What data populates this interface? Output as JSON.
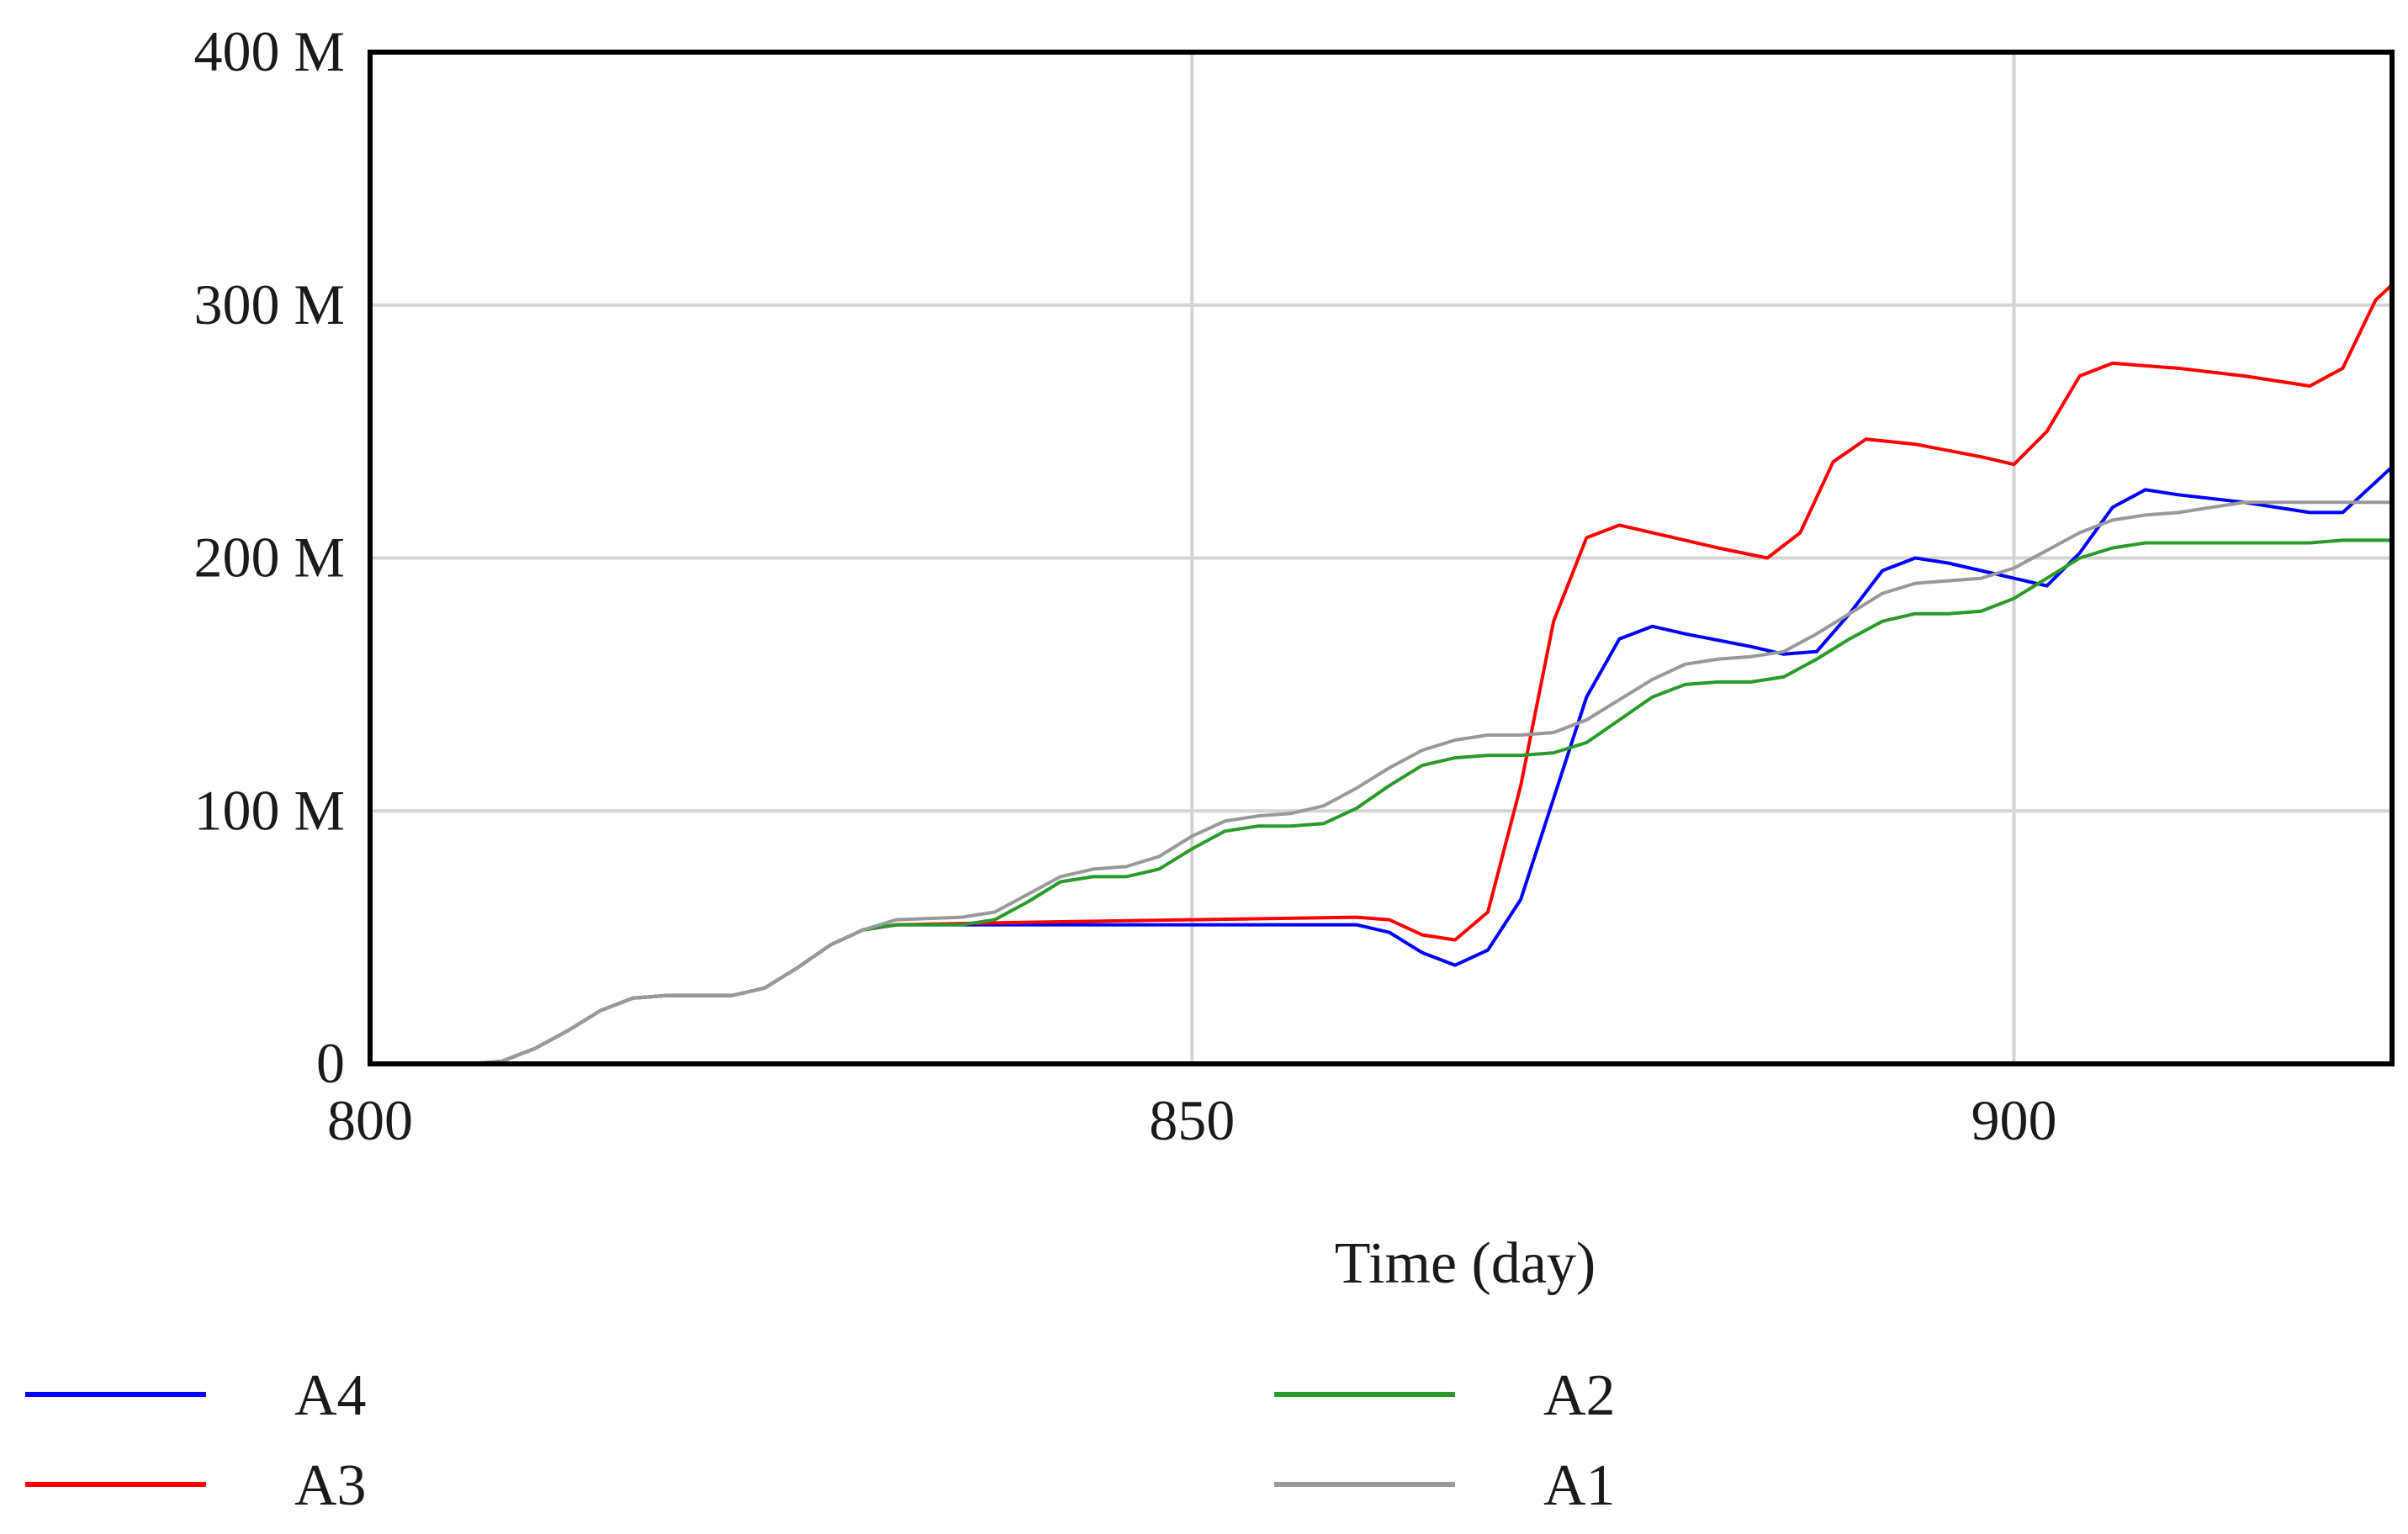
{
  "chart_data": {
    "type": "line",
    "title": "",
    "xlabel": "Time (day)",
    "ylabel": "",
    "xlim": [
      800,
      923
    ],
    "ylim": [
      0,
      400
    ],
    "x_ticks": [
      800,
      850,
      900
    ],
    "x_tick_labels": [
      "800",
      "850",
      "900"
    ],
    "y_ticks": [
      0,
      100,
      200,
      300,
      400
    ],
    "y_tick_labels": [
      "0",
      "100 M",
      "200 M",
      "300 M",
      "400 M"
    ],
    "y_unit": "M",
    "grid": true,
    "legend_position": "bottom",
    "series": [
      {
        "name": "A4",
        "color": "#0000ff",
        "points": [
          [
            800,
            0
          ],
          [
            806,
            0
          ],
          [
            808,
            1
          ],
          [
            810,
            6
          ],
          [
            812,
            13
          ],
          [
            814,
            21
          ],
          [
            816,
            26
          ],
          [
            818,
            27
          ],
          [
            820,
            27
          ],
          [
            822,
            27
          ],
          [
            824,
            30
          ],
          [
            826,
            38
          ],
          [
            828,
            47
          ],
          [
            830,
            53
          ],
          [
            832,
            55
          ],
          [
            840,
            55
          ],
          [
            850,
            55
          ],
          [
            860,
            55
          ],
          [
            862,
            52
          ],
          [
            864,
            44
          ],
          [
            866,
            39
          ],
          [
            868,
            45
          ],
          [
            870,
            65
          ],
          [
            872,
            105
          ],
          [
            874,
            145
          ],
          [
            876,
            168
          ],
          [
            878,
            173
          ],
          [
            880,
            170
          ],
          [
            884,
            165
          ],
          [
            886,
            162
          ],
          [
            888,
            163
          ],
          [
            890,
            178
          ],
          [
            892,
            195
          ],
          [
            894,
            200
          ],
          [
            896,
            198
          ],
          [
            898,
            195
          ],
          [
            900,
            192
          ],
          [
            902,
            189
          ],
          [
            904,
            202
          ],
          [
            906,
            220
          ],
          [
            908,
            227
          ],
          [
            910,
            225
          ],
          [
            914,
            222
          ],
          [
            918,
            218
          ],
          [
            920,
            218
          ],
          [
            922,
            230
          ],
          [
            923,
            236
          ]
        ]
      },
      {
        "name": "A3",
        "color": "#ff0000",
        "points": [
          [
            800,
            0
          ],
          [
            806,
            0
          ],
          [
            808,
            1
          ],
          [
            810,
            6
          ],
          [
            812,
            13
          ],
          [
            814,
            21
          ],
          [
            816,
            26
          ],
          [
            818,
            27
          ],
          [
            820,
            27
          ],
          [
            822,
            27
          ],
          [
            824,
            30
          ],
          [
            826,
            38
          ],
          [
            828,
            47
          ],
          [
            830,
            53
          ],
          [
            832,
            55
          ],
          [
            840,
            56
          ],
          [
            850,
            57
          ],
          [
            860,
            58
          ],
          [
            862,
            57
          ],
          [
            864,
            51
          ],
          [
            866,
            49
          ],
          [
            868,
            60
          ],
          [
            870,
            110
          ],
          [
            872,
            175
          ],
          [
            874,
            208
          ],
          [
            876,
            213
          ],
          [
            878,
            210
          ],
          [
            882,
            204
          ],
          [
            885,
            200
          ],
          [
            887,
            210
          ],
          [
            889,
            238
          ],
          [
            891,
            247
          ],
          [
            894,
            245
          ],
          [
            898,
            240
          ],
          [
            900,
            237
          ],
          [
            902,
            250
          ],
          [
            904,
            272
          ],
          [
            906,
            277
          ],
          [
            910,
            275
          ],
          [
            914,
            272
          ],
          [
            918,
            268
          ],
          [
            920,
            275
          ],
          [
            922,
            302
          ],
          [
            923,
            308
          ]
        ]
      },
      {
        "name": "A2",
        "color": "#2a9a2a",
        "points": [
          [
            800,
            0
          ],
          [
            806,
            0
          ],
          [
            808,
            1
          ],
          [
            810,
            6
          ],
          [
            812,
            13
          ],
          [
            814,
            21
          ],
          [
            816,
            26
          ],
          [
            818,
            27
          ],
          [
            820,
            27
          ],
          [
            822,
            27
          ],
          [
            824,
            30
          ],
          [
            826,
            38
          ],
          [
            828,
            47
          ],
          [
            830,
            53
          ],
          [
            832,
            55
          ],
          [
            836,
            55
          ],
          [
            838,
            57
          ],
          [
            840,
            64
          ],
          [
            842,
            72
          ],
          [
            844,
            74
          ],
          [
            846,
            74
          ],
          [
            848,
            77
          ],
          [
            850,
            85
          ],
          [
            852,
            92
          ],
          [
            854,
            94
          ],
          [
            856,
            94
          ],
          [
            858,
            95
          ],
          [
            860,
            101
          ],
          [
            862,
            110
          ],
          [
            864,
            118
          ],
          [
            866,
            121
          ],
          [
            868,
            122
          ],
          [
            870,
            122
          ],
          [
            872,
            123
          ],
          [
            874,
            127
          ],
          [
            876,
            136
          ],
          [
            878,
            145
          ],
          [
            880,
            150
          ],
          [
            882,
            151
          ],
          [
            884,
            151
          ],
          [
            886,
            153
          ],
          [
            888,
            160
          ],
          [
            890,
            168
          ],
          [
            892,
            175
          ],
          [
            894,
            178
          ],
          [
            896,
            178
          ],
          [
            898,
            179
          ],
          [
            900,
            184
          ],
          [
            902,
            192
          ],
          [
            904,
            200
          ],
          [
            906,
            204
          ],
          [
            908,
            206
          ],
          [
            910,
            206
          ],
          [
            912,
            206
          ],
          [
            914,
            206
          ],
          [
            916,
            206
          ],
          [
            918,
            206
          ],
          [
            920,
            207
          ],
          [
            923,
            207
          ]
        ]
      },
      {
        "name": "A1",
        "color": "#999999",
        "points": [
          [
            800,
            0
          ],
          [
            806,
            0
          ],
          [
            808,
            1
          ],
          [
            810,
            6
          ],
          [
            812,
            13
          ],
          [
            814,
            21
          ],
          [
            816,
            26
          ],
          [
            818,
            27
          ],
          [
            820,
            27
          ],
          [
            822,
            27
          ],
          [
            824,
            30
          ],
          [
            826,
            38
          ],
          [
            828,
            47
          ],
          [
            830,
            53
          ],
          [
            832,
            57
          ],
          [
            836,
            58
          ],
          [
            838,
            60
          ],
          [
            840,
            67
          ],
          [
            842,
            74
          ],
          [
            844,
            77
          ],
          [
            846,
            78
          ],
          [
            848,
            82
          ],
          [
            850,
            90
          ],
          [
            852,
            96
          ],
          [
            854,
            98
          ],
          [
            856,
            99
          ],
          [
            858,
            102
          ],
          [
            860,
            109
          ],
          [
            862,
            117
          ],
          [
            864,
            124
          ],
          [
            866,
            128
          ],
          [
            868,
            130
          ],
          [
            870,
            130
          ],
          [
            872,
            131
          ],
          [
            874,
            136
          ],
          [
            876,
            144
          ],
          [
            878,
            152
          ],
          [
            880,
            158
          ],
          [
            882,
            160
          ],
          [
            884,
            161
          ],
          [
            886,
            163
          ],
          [
            888,
            170
          ],
          [
            890,
            178
          ],
          [
            892,
            186
          ],
          [
            894,
            190
          ],
          [
            896,
            191
          ],
          [
            898,
            192
          ],
          [
            900,
            196
          ],
          [
            902,
            203
          ],
          [
            904,
            210
          ],
          [
            906,
            215
          ],
          [
            908,
            217
          ],
          [
            910,
            218
          ],
          [
            912,
            220
          ],
          [
            914,
            222
          ],
          [
            916,
            222
          ],
          [
            918,
            222
          ],
          [
            920,
            222
          ],
          [
            923,
            222
          ]
        ]
      }
    ]
  }
}
